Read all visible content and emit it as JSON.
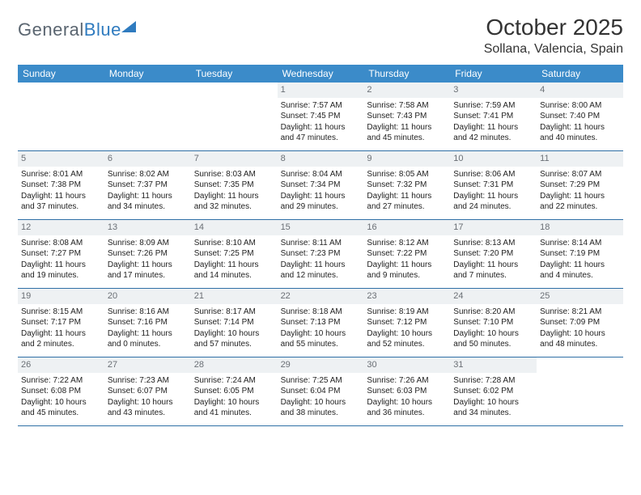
{
  "logo": {
    "text1": "General",
    "text2": "Blue"
  },
  "title": "October 2025",
  "location": "Sollana, Valencia, Spain",
  "weekdays": [
    "Sunday",
    "Monday",
    "Tuesday",
    "Wednesday",
    "Thursday",
    "Friday",
    "Saturday"
  ],
  "colors": {
    "header_bar": "#3b8bc9",
    "daynum_bg": "#eef1f3",
    "row_border": "#2f6fa6",
    "logo_gray": "#5a6570",
    "logo_blue": "#2f7bbf"
  },
  "weeks": [
    [
      null,
      null,
      null,
      {
        "n": "1",
        "sr": "7:57 AM",
        "ss": "7:45 PM",
        "dl1": "Daylight: 11 hours",
        "dl2": "and 47 minutes."
      },
      {
        "n": "2",
        "sr": "7:58 AM",
        "ss": "7:43 PM",
        "dl1": "Daylight: 11 hours",
        "dl2": "and 45 minutes."
      },
      {
        "n": "3",
        "sr": "7:59 AM",
        "ss": "7:41 PM",
        "dl1": "Daylight: 11 hours",
        "dl2": "and 42 minutes."
      },
      {
        "n": "4",
        "sr": "8:00 AM",
        "ss": "7:40 PM",
        "dl1": "Daylight: 11 hours",
        "dl2": "and 40 minutes."
      }
    ],
    [
      {
        "n": "5",
        "sr": "8:01 AM",
        "ss": "7:38 PM",
        "dl1": "Daylight: 11 hours",
        "dl2": "and 37 minutes."
      },
      {
        "n": "6",
        "sr": "8:02 AM",
        "ss": "7:37 PM",
        "dl1": "Daylight: 11 hours",
        "dl2": "and 34 minutes."
      },
      {
        "n": "7",
        "sr": "8:03 AM",
        "ss": "7:35 PM",
        "dl1": "Daylight: 11 hours",
        "dl2": "and 32 minutes."
      },
      {
        "n": "8",
        "sr": "8:04 AM",
        "ss": "7:34 PM",
        "dl1": "Daylight: 11 hours",
        "dl2": "and 29 minutes."
      },
      {
        "n": "9",
        "sr": "8:05 AM",
        "ss": "7:32 PM",
        "dl1": "Daylight: 11 hours",
        "dl2": "and 27 minutes."
      },
      {
        "n": "10",
        "sr": "8:06 AM",
        "ss": "7:31 PM",
        "dl1": "Daylight: 11 hours",
        "dl2": "and 24 minutes."
      },
      {
        "n": "11",
        "sr": "8:07 AM",
        "ss": "7:29 PM",
        "dl1": "Daylight: 11 hours",
        "dl2": "and 22 minutes."
      }
    ],
    [
      {
        "n": "12",
        "sr": "8:08 AM",
        "ss": "7:27 PM",
        "dl1": "Daylight: 11 hours",
        "dl2": "and 19 minutes."
      },
      {
        "n": "13",
        "sr": "8:09 AM",
        "ss": "7:26 PM",
        "dl1": "Daylight: 11 hours",
        "dl2": "and 17 minutes."
      },
      {
        "n": "14",
        "sr": "8:10 AM",
        "ss": "7:25 PM",
        "dl1": "Daylight: 11 hours",
        "dl2": "and 14 minutes."
      },
      {
        "n": "15",
        "sr": "8:11 AM",
        "ss": "7:23 PM",
        "dl1": "Daylight: 11 hours",
        "dl2": "and 12 minutes."
      },
      {
        "n": "16",
        "sr": "8:12 AM",
        "ss": "7:22 PM",
        "dl1": "Daylight: 11 hours",
        "dl2": "and 9 minutes."
      },
      {
        "n": "17",
        "sr": "8:13 AM",
        "ss": "7:20 PM",
        "dl1": "Daylight: 11 hours",
        "dl2": "and 7 minutes."
      },
      {
        "n": "18",
        "sr": "8:14 AM",
        "ss": "7:19 PM",
        "dl1": "Daylight: 11 hours",
        "dl2": "and 4 minutes."
      }
    ],
    [
      {
        "n": "19",
        "sr": "8:15 AM",
        "ss": "7:17 PM",
        "dl1": "Daylight: 11 hours",
        "dl2": "and 2 minutes."
      },
      {
        "n": "20",
        "sr": "8:16 AM",
        "ss": "7:16 PM",
        "dl1": "Daylight: 11 hours",
        "dl2": "and 0 minutes."
      },
      {
        "n": "21",
        "sr": "8:17 AM",
        "ss": "7:14 PM",
        "dl1": "Daylight: 10 hours",
        "dl2": "and 57 minutes."
      },
      {
        "n": "22",
        "sr": "8:18 AM",
        "ss": "7:13 PM",
        "dl1": "Daylight: 10 hours",
        "dl2": "and 55 minutes."
      },
      {
        "n": "23",
        "sr": "8:19 AM",
        "ss": "7:12 PM",
        "dl1": "Daylight: 10 hours",
        "dl2": "and 52 minutes."
      },
      {
        "n": "24",
        "sr": "8:20 AM",
        "ss": "7:10 PM",
        "dl1": "Daylight: 10 hours",
        "dl2": "and 50 minutes."
      },
      {
        "n": "25",
        "sr": "8:21 AM",
        "ss": "7:09 PM",
        "dl1": "Daylight: 10 hours",
        "dl2": "and 48 minutes."
      }
    ],
    [
      {
        "n": "26",
        "sr": "7:22 AM",
        "ss": "6:08 PM",
        "dl1": "Daylight: 10 hours",
        "dl2": "and 45 minutes."
      },
      {
        "n": "27",
        "sr": "7:23 AM",
        "ss": "6:07 PM",
        "dl1": "Daylight: 10 hours",
        "dl2": "and 43 minutes."
      },
      {
        "n": "28",
        "sr": "7:24 AM",
        "ss": "6:05 PM",
        "dl1": "Daylight: 10 hours",
        "dl2": "and 41 minutes."
      },
      {
        "n": "29",
        "sr": "7:25 AM",
        "ss": "6:04 PM",
        "dl1": "Daylight: 10 hours",
        "dl2": "and 38 minutes."
      },
      {
        "n": "30",
        "sr": "7:26 AM",
        "ss": "6:03 PM",
        "dl1": "Daylight: 10 hours",
        "dl2": "and 36 minutes."
      },
      {
        "n": "31",
        "sr": "7:28 AM",
        "ss": "6:02 PM",
        "dl1": "Daylight: 10 hours",
        "dl2": "and 34 minutes."
      },
      null
    ]
  ],
  "labels": {
    "sunrise": "Sunrise: ",
    "sunset": "Sunset: "
  }
}
